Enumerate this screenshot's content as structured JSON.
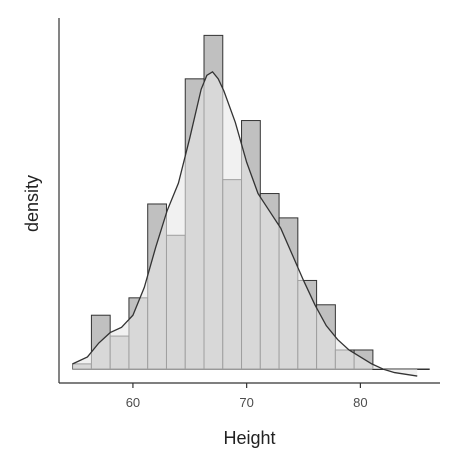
{
  "chart_data": {
    "type": "bar",
    "xlabel": "Height",
    "ylabel": "density",
    "xlim": [
      53.5,
      87
    ],
    "ylim": [
      0,
      0.105
    ],
    "bin_width": 1.65,
    "bins": [
      {
        "x_start": 54.7,
        "density": 0.0055
      },
      {
        "x_start": 56.35,
        "density": 0.0195
      },
      {
        "x_start": 58.0,
        "density": 0.0135
      },
      {
        "x_start": 59.65,
        "density": 0.0245
      },
      {
        "x_start": 61.3,
        "density": 0.0515
      },
      {
        "x_start": 62.95,
        "density": 0.0425
      },
      {
        "x_start": 64.6,
        "density": 0.0875
      },
      {
        "x_start": 66.25,
        "density": 0.1
      },
      {
        "x_start": 67.9,
        "density": 0.0585
      },
      {
        "x_start": 69.55,
        "density": 0.0755
      },
      {
        "x_start": 71.2,
        "density": 0.0545
      },
      {
        "x_start": 72.85,
        "density": 0.0475
      },
      {
        "x_start": 74.5,
        "density": 0.0295
      },
      {
        "x_start": 76.15,
        "density": 0.0225
      },
      {
        "x_start": 77.8,
        "density": 0.0095
      },
      {
        "x_start": 79.45,
        "density": 0.0095
      },
      {
        "x_start": 81.1,
        "density": 0.002
      },
      {
        "x_start": 82.75,
        "density": 0.002
      },
      {
        "x_start": 84.4,
        "density": 0.0035
      }
    ],
    "density_curve": {
      "x": [
        54.7,
        56,
        57,
        58,
        59,
        60,
        61,
        62,
        63,
        64,
        65,
        66,
        66.5,
        67,
        67.5,
        68,
        69,
        70,
        71,
        72,
        73,
        74,
        75,
        76,
        77,
        78,
        79,
        80,
        81,
        82,
        83,
        84,
        85
      ],
      "y": [
        0.0055,
        0.0075,
        0.0115,
        0.0145,
        0.016,
        0.0195,
        0.0275,
        0.039,
        0.0495,
        0.0575,
        0.0705,
        0.0845,
        0.0885,
        0.0895,
        0.0875,
        0.084,
        0.075,
        0.0635,
        0.0545,
        0.0495,
        0.0445,
        0.037,
        0.0295,
        0.0225,
        0.0165,
        0.0125,
        0.0095,
        0.0075,
        0.0055,
        0.004,
        0.003,
        0.0025,
        0.002
      ]
    },
    "x_ticks": [
      {
        "value": 60,
        "label": "60"
      },
      {
        "value": 70,
        "label": "70"
      },
      {
        "value": 80,
        "label": "80"
      }
    ],
    "grid": false,
    "colors": {
      "bar_fill": "#c0c0c0",
      "bar_stroke": "#333333",
      "density_fill": "#e8e8e8",
      "density_line": "#333333",
      "axis": "#333333"
    }
  }
}
